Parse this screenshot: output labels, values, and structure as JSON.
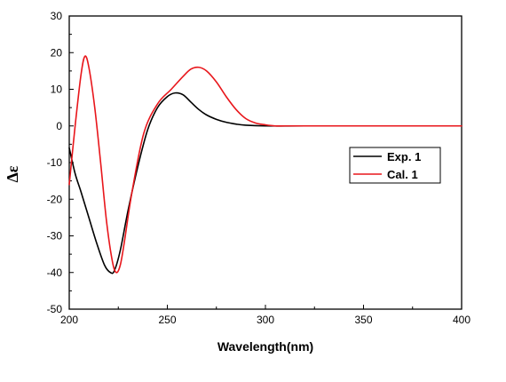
{
  "chart_data": {
    "type": "line",
    "title": "",
    "xlabel": "Wavelength(nm)",
    "ylabel": "Δε",
    "xlim": [
      200,
      400
    ],
    "ylim": [
      -50,
      30
    ],
    "xticks": [
      200,
      250,
      300,
      350,
      400
    ],
    "yticks": [
      -50,
      -40,
      -30,
      -20,
      -10,
      0,
      10,
      20,
      30
    ],
    "grid": false,
    "legend_position": "right",
    "series": [
      {
        "name": "Exp. 1",
        "color": "#000000",
        "x": [
          200,
          203,
          206,
          210,
          214,
          218,
          221,
          223,
          226,
          230,
          235,
          240,
          245,
          250,
          254,
          258,
          262,
          266,
          270,
          275,
          280,
          285,
          290,
          300,
          320,
          350,
          400
        ],
        "y": [
          -6,
          -13,
          -18,
          -25,
          -32,
          -38,
          -40,
          -39.5,
          -34,
          -23,
          -11,
          -1,
          5,
          8,
          9,
          8.5,
          6.5,
          4.5,
          3,
          1.8,
          1,
          0.5,
          0.2,
          0,
          0,
          0,
          0
        ]
      },
      {
        "name": "Cal. 1",
        "color": "#e8161b",
        "x": [
          200,
          203,
          206,
          208,
          210,
          213,
          216,
          219,
          222,
          224,
          226,
          228,
          232,
          238,
          245,
          252,
          258,
          262,
          266,
          270,
          275,
          280,
          285,
          290,
          295,
          300,
          305,
          310,
          320,
          350,
          400
        ],
        "y": [
          -16,
          0,
          14,
          19,
          16,
          5,
          -10,
          -26,
          -37,
          -40,
          -38,
          -32,
          -18,
          -2,
          6,
          10,
          13.5,
          15.5,
          16,
          15,
          12,
          8,
          4.5,
          2,
          0.8,
          0.3,
          0,
          0,
          0,
          0,
          0
        ]
      }
    ]
  }
}
